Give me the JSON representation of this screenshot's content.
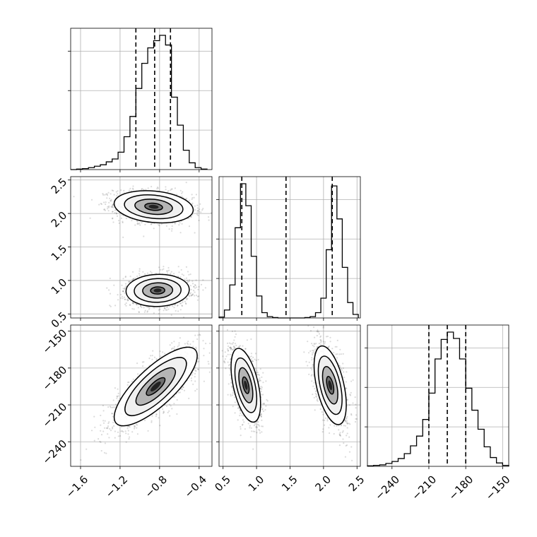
{
  "chart_data": {
    "type": "corner",
    "parameters": [
      {
        "ticks": [
          -1.6,
          -1.2,
          -0.8,
          -0.4
        ],
        "tick_labels": [
          "−1.6",
          "−1.2",
          "−0.8",
          "−0.4"
        ],
        "range": [
          -1.7,
          -0.27
        ],
        "quantiles": [
          -1.04,
          -0.85,
          -0.69
        ]
      },
      {
        "ticks": [
          0.5,
          1.0,
          1.5,
          2.0,
          2.5
        ],
        "tick_labels": [
          "0.5",
          "1.0",
          "1.5",
          "2.0",
          "2.5"
        ],
        "range": [
          0.44,
          2.55
        ],
        "quantiles": [
          0.78,
          1.44,
          2.13
        ]
      },
      {
        "ticks": [
          -240,
          -210,
          -180,
          -150
        ],
        "tick_labels": [
          "−240",
          "−210",
          "−180",
          "−150"
        ],
        "range": [
          -260,
          -145
        ],
        "quantiles": [
          -210,
          -195,
          -180
        ]
      }
    ],
    "histograms": [
      {
        "parameter": 0,
        "bin_edges": [
          -1.7,
          -1.64,
          -1.58,
          -1.52,
          -1.46,
          -1.4,
          -1.34,
          -1.28,
          -1.22,
          -1.16,
          -1.1,
          -1.04,
          -0.98,
          -0.92,
          -0.86,
          -0.8,
          -0.74,
          -0.68,
          -0.62,
          -0.56,
          -0.5,
          -0.44,
          -0.38,
          -0.32
        ],
        "counts": [
          0,
          1,
          2,
          4,
          7,
          10,
          16,
          22,
          36,
          68,
          110,
          168,
          220,
          252,
          267,
          278,
          258,
          150,
          92,
          40,
          14,
          4,
          1
        ]
      },
      {
        "parameter": 1,
        "bin_edges": [
          0.44,
          0.52,
          0.6,
          0.68,
          0.76,
          0.84,
          0.92,
          1.0,
          1.08,
          1.16,
          1.24,
          1.32,
          1.4,
          1.48,
          1.56,
          1.64,
          1.72,
          1.8,
          1.88,
          1.96,
          2.04,
          2.12,
          2.2,
          2.28,
          2.36,
          2.44,
          2.52
        ],
        "counts": [
          2,
          18,
          75,
          205,
          305,
          255,
          140,
          50,
          12,
          3,
          1,
          0,
          0,
          0,
          0,
          0,
          1,
          3,
          12,
          45,
          155,
          300,
          225,
          115,
          35,
          8
        ]
      },
      {
        "parameter": 2,
        "bin_edges": [
          -260,
          -255,
          -250,
          -245,
          -240,
          -235,
          -230,
          -225,
          -220,
          -215,
          -210,
          -205,
          -200,
          -195,
          -190,
          -185,
          -180,
          -175,
          -170,
          -165,
          -160,
          -155,
          -150,
          -145
        ],
        "counts": [
          1,
          2,
          3,
          6,
          10,
          16,
          26,
          42,
          62,
          96,
          150,
          220,
          260,
          275,
          262,
          220,
          160,
          115,
          76,
          40,
          18,
          7,
          2
        ]
      }
    ],
    "joint_distributions": [
      {
        "x": 0,
        "y": 1,
        "modes": [
          {
            "mean": [
              -0.86,
              2.1
            ],
            "sd": [
              0.2,
              0.12
            ],
            "corr": -0.2
          },
          {
            "mean": [
              -0.82,
              0.85
            ],
            "sd": [
              0.16,
              0.12
            ],
            "corr": 0.05
          }
        ]
      },
      {
        "x": 0,
        "y": 2,
        "modes": [
          {
            "mean": [
              -0.84,
              -195
            ],
            "sd": [
              0.21,
              16
            ],
            "corr": 0.78
          }
        ]
      },
      {
        "x": 1,
        "y": 2,
        "modes": [
          {
            "mean": [
              0.84,
              -194
            ],
            "sd": [
              0.11,
              15
            ],
            "corr": -0.5
          },
          {
            "mean": [
              2.1,
              -194
            ],
            "sd": [
              0.12,
              16
            ],
            "corr": -0.5
          }
        ]
      }
    ]
  }
}
